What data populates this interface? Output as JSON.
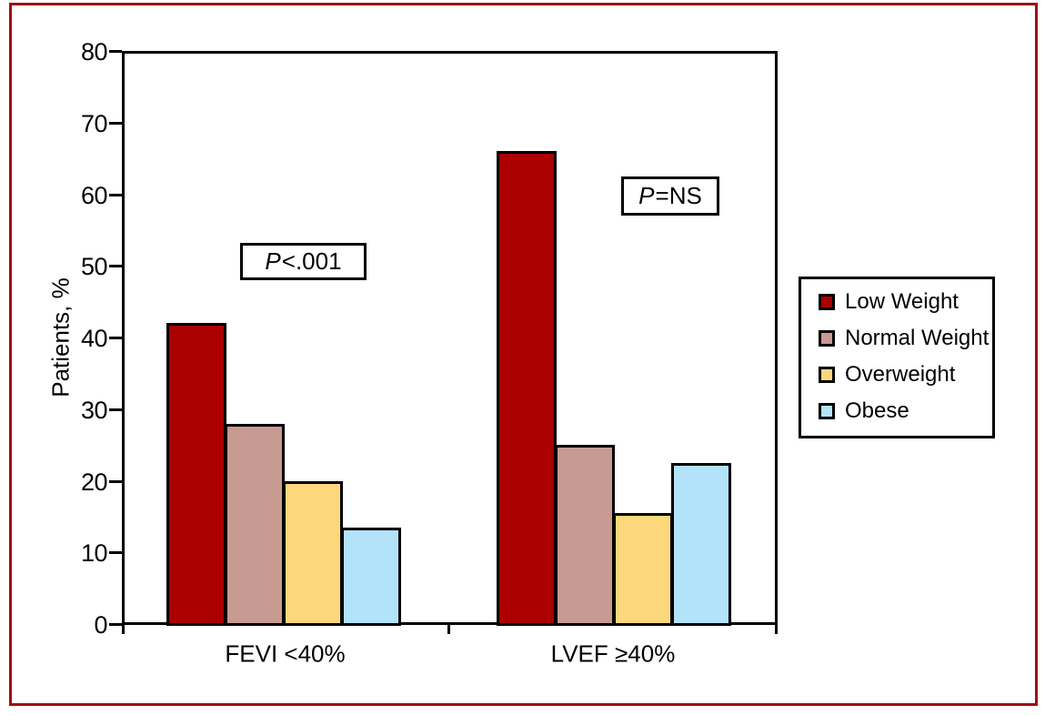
{
  "figure": {
    "frame_color": "#A00D16"
  },
  "chart_data": {
    "type": "bar",
    "title": "",
    "xlabel": "",
    "ylabel": "Patients, %",
    "ylim": [
      0,
      80
    ],
    "ytick_step": 10,
    "grid": false,
    "legend_position": "right",
    "categories": [
      "FEVI <40%",
      "LVEF ≥40%"
    ],
    "series": [
      {
        "name": "Low Weight",
        "color": "#AA0000",
        "values": [
          42,
          66
        ]
      },
      {
        "name": "Normal Weight",
        "color": "#C79A92",
        "values": [
          28,
          25
        ]
      },
      {
        "name": "Overweight",
        "color": "#FDD77C",
        "values": [
          20,
          15.5
        ]
      },
      {
        "name": "Obese",
        "color": "#B3E2FB",
        "values": [
          13.5,
          22.5
        ]
      }
    ],
    "annotations": [
      {
        "p": "P",
        "rest": "<.001"
      },
      {
        "p": "P",
        "rest": "=NS"
      }
    ]
  }
}
